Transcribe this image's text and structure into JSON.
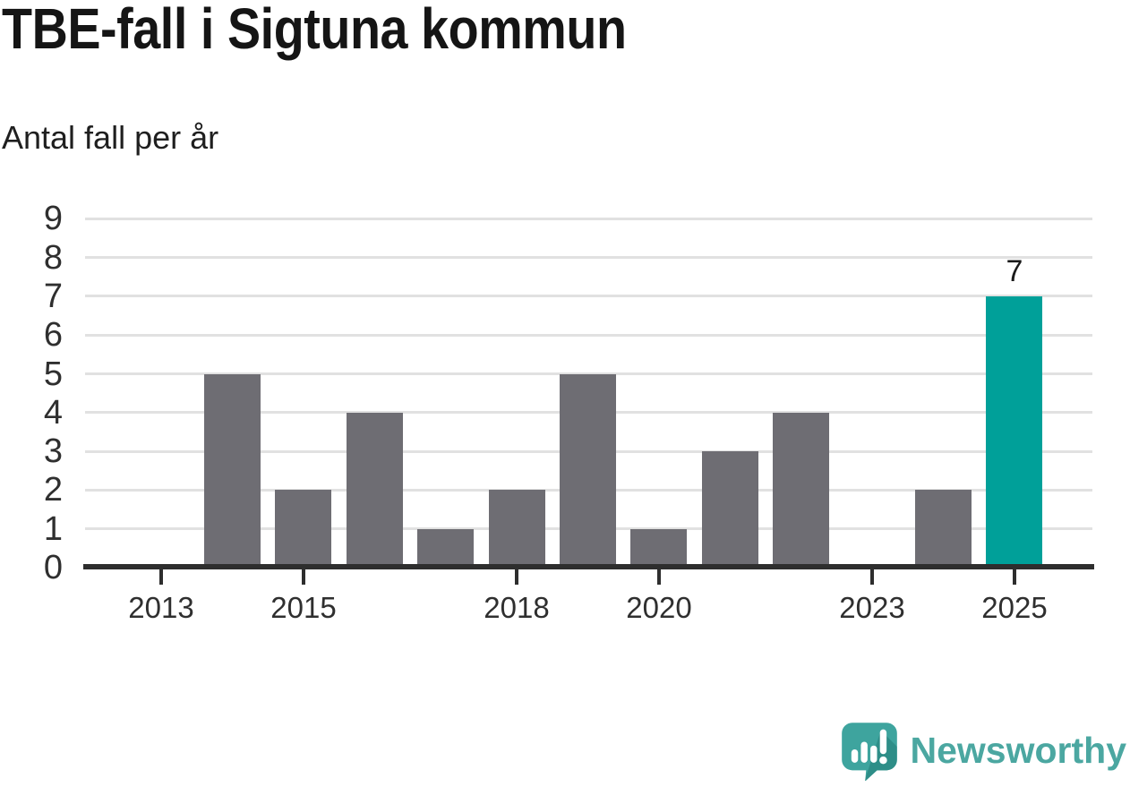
{
  "title": "TBE-fall i Sigtuna kommun",
  "subtitle": "Antal fall per år",
  "chart_data": {
    "type": "bar",
    "title": "TBE-fall i Sigtuna kommun",
    "subtitle": "Antal fall per år",
    "xlabel": "",
    "ylabel": "Antal fall per år",
    "categories": [
      2013,
      2014,
      2015,
      2016,
      2017,
      2018,
      2019,
      2020,
      2021,
      2022,
      2023,
      2024,
      2025
    ],
    "values": [
      0,
      5,
      2,
      4,
      1,
      2,
      5,
      1,
      3,
      4,
      0,
      2,
      7
    ],
    "ylim": [
      0,
      9
    ],
    "y_tick_labels": [
      "0",
      "1",
      "2",
      "3",
      "4",
      "5",
      "6",
      "7",
      "8",
      "9"
    ],
    "x_tick_labels": [
      "2013",
      "2015",
      "2018",
      "2020",
      "2023",
      "2025"
    ],
    "grid": true,
    "legend": "none",
    "highlight_category": 2025,
    "value_labels": [
      {
        "category": 2025,
        "text": "7"
      }
    ],
    "colors": {
      "bar": "#6E6D73",
      "highlight": "#00A099",
      "gridline": "#E1E1E1",
      "axis": "#2E2E2E",
      "tick_label": "#2F2F2F",
      "value_label": "#1A1A1A"
    }
  },
  "branding": {
    "wordmark": "Newsworthy",
    "logo_icon": "newsworthy-speech-bubble-chart-icon",
    "colors": {
      "wordmark": "#4BA7A1",
      "logo_main": "#3EA49E",
      "logo_shadow": "#2E8E88",
      "logo_glyphs": "#FFFFFF"
    }
  }
}
